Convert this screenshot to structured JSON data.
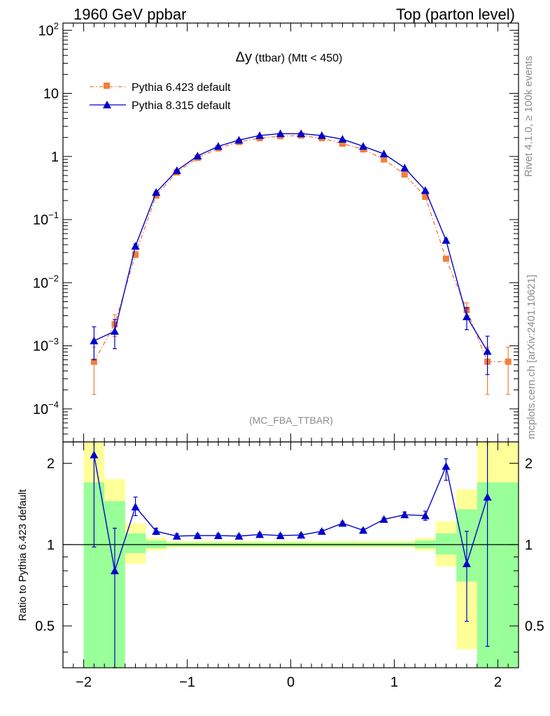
{
  "header": {
    "left": "1960 GeV ppbar",
    "right": "Top (parton level)"
  },
  "side_labels": {
    "rivet": "Rivet 4.1.0, ≥ 100k events",
    "mcplots": "mcplots.cern.ch [arXiv:2401.10621]"
  },
  "chart_data": [
    {
      "type": "line",
      "title_symbol": "Δy",
      "title_rest": " (ttbar) (Mtt < 450)",
      "analysis_tag": "(MC_FBA_TTBAR)",
      "yscale": "log",
      "xlim": [
        -2.2,
        2.2
      ],
      "ylim": [
        3e-05,
        130
      ],
      "y_ticks": [
        {
          "value": 0.0001,
          "base": "10",
          "exp": "−4"
        },
        {
          "value": 0.001,
          "base": "10",
          "exp": "−3"
        },
        {
          "value": 0.01,
          "base": "10",
          "exp": "−2"
        },
        {
          "value": 0.1,
          "base": "10",
          "exp": "−1"
        },
        {
          "value": 1,
          "base": "1",
          "exp": ""
        },
        {
          "value": 10,
          "base": "10",
          "exp": ""
        },
        {
          "value": 100,
          "base": "10",
          "exp": "2"
        }
      ],
      "legend_position": "top-left",
      "series": [
        {
          "name": "Pythia 6.423 default",
          "color": "#f0803c",
          "marker": "square",
          "linestyle": "dash-dot",
          "x": [
            -1.9,
            -1.7,
            -1.5,
            -1.3,
            -1.1,
            -0.9,
            -0.7,
            -0.5,
            -0.3,
            -0.1,
            0.1,
            0.3,
            0.5,
            0.7,
            0.9,
            1.1,
            1.3,
            1.5,
            1.7,
            1.9,
            2.1
          ],
          "y": [
            0.00056,
            0.0022,
            0.028,
            0.24,
            0.56,
            0.95,
            1.35,
            1.7,
            1.95,
            2.1,
            2.15,
            1.95,
            1.6,
            1.3,
            0.9,
            0.52,
            0.23,
            0.024,
            0.0037,
            0.00056,
            0.00056
          ],
          "yerr_low": [
            0.00039,
            0.0008,
            0.003,
            0.01,
            0.01,
            0.01,
            0.01,
            0.01,
            0.01,
            0.01,
            0.01,
            0.01,
            0.01,
            0.01,
            0.01,
            0.01,
            0.01,
            0.002,
            0.0011,
            0.00039,
            0.00039
          ],
          "yerr_high": [
            0.00039,
            0.0009,
            0.003,
            0.01,
            0.01,
            0.01,
            0.01,
            0.01,
            0.01,
            0.01,
            0.01,
            0.01,
            0.01,
            0.01,
            0.01,
            0.01,
            0.01,
            0.002,
            0.0011,
            0.00039,
            0.00039
          ]
        },
        {
          "name": "Pythia 8.315 default",
          "color": "#0000cc",
          "marker": "triangle",
          "linestyle": "solid",
          "x": [
            -1.9,
            -1.7,
            -1.5,
            -1.3,
            -1.1,
            -0.9,
            -0.7,
            -0.5,
            -0.3,
            -0.1,
            0.1,
            0.3,
            0.5,
            0.7,
            0.9,
            1.1,
            1.3,
            1.5,
            1.7,
            1.9
          ],
          "y": [
            0.0012,
            0.0017,
            0.038,
            0.27,
            0.6,
            1.02,
            1.45,
            1.82,
            2.15,
            2.3,
            2.3,
            2.15,
            1.88,
            1.45,
            1.1,
            0.66,
            0.29,
            0.047,
            0.0029,
            0.00082
          ],
          "yerr_low": [
            0.0006,
            0.0008,
            0.003,
            0.01,
            0.01,
            0.01,
            0.01,
            0.01,
            0.01,
            0.01,
            0.01,
            0.01,
            0.01,
            0.01,
            0.01,
            0.01,
            0.01,
            0.003,
            0.0011,
            0.00047
          ],
          "yerr_high": [
            0.0008,
            0.0009,
            0.003,
            0.01,
            0.01,
            0.01,
            0.01,
            0.01,
            0.01,
            0.01,
            0.01,
            0.01,
            0.01,
            0.01,
            0.01,
            0.01,
            0.01,
            0.003,
            0.0011,
            0.0006
          ]
        }
      ]
    },
    {
      "type": "line",
      "ylabel": "Ratio to Pythia 6.423 default",
      "yscale": "log",
      "xlim": [
        -2.2,
        2.2
      ],
      "ylim": [
        0.35,
        2.4
      ],
      "x_ticks": [
        {
          "value": -2,
          "label": "−2"
        },
        {
          "value": -1,
          "label": "−1"
        },
        {
          "value": 0,
          "label": "0"
        },
        {
          "value": 1,
          "label": "1"
        },
        {
          "value": 2,
          "label": "2"
        }
      ],
      "y_ticks": [
        {
          "value": 0.5,
          "label": "0.5"
        },
        {
          "value": 1,
          "label": "1"
        },
        {
          "value": 2,
          "label": "2"
        }
      ],
      "reference_line": 1,
      "bands": {
        "green_color": "#99ff99",
        "yellow_color": "#ffff99",
        "bins": [
          {
            "xlo": -2.0,
            "xhi": -1.8,
            "green": [
              0.3,
              1.7
            ],
            "yellow": [
              0.3,
              2.4
            ]
          },
          {
            "xlo": -1.8,
            "xhi": -1.6,
            "green": [
              0.3,
              1.45
            ],
            "yellow": [
              0.3,
              1.75
            ]
          },
          {
            "xlo": -1.6,
            "xhi": -1.4,
            "green": [
              0.93,
              1.1
            ],
            "yellow": [
              0.85,
              1.2
            ]
          },
          {
            "xlo": -1.4,
            "xhi": -1.2,
            "green": [
              0.97,
              1.035
            ],
            "yellow": [
              0.95,
              1.06
            ]
          },
          {
            "xlo": -1.2,
            "xhi": 1.2,
            "green": [
              0.985,
              1.015
            ],
            "yellow": [
              0.975,
              1.03
            ]
          },
          {
            "xlo": 1.2,
            "xhi": 1.4,
            "green": [
              0.97,
              1.035
            ],
            "yellow": [
              0.95,
              1.06
            ]
          },
          {
            "xlo": 1.4,
            "xhi": 1.6,
            "green": [
              0.92,
              1.1
            ],
            "yellow": [
              0.83,
              1.22
            ]
          },
          {
            "xlo": 1.6,
            "xhi": 1.8,
            "green": [
              0.73,
              1.35
            ],
            "yellow": [
              0.41,
              1.6
            ]
          },
          {
            "xlo": 1.8,
            "xhi": 2.0,
            "green": [
              0.3,
              1.7
            ],
            "yellow": [
              0.3,
              2.4
            ]
          },
          {
            "xlo": 2.0,
            "xhi": 2.2,
            "green": [
              0.3,
              1.7
            ],
            "yellow": [
              0.3,
              2.4
            ]
          }
        ]
      },
      "series": [
        {
          "name": "Pythia 8.315 default",
          "color": "#0000cc",
          "x": [
            -1.9,
            -1.7,
            -1.5,
            -1.3,
            -1.1,
            -0.9,
            -0.7,
            -0.5,
            -0.3,
            -0.1,
            0.1,
            0.3,
            0.5,
            0.7,
            0.9,
            1.1,
            1.3,
            1.5,
            1.7,
            1.9
          ],
          "y": [
            2.15,
            0.8,
            1.38,
            1.12,
            1.075,
            1.08,
            1.08,
            1.075,
            1.09,
            1.08,
            1.085,
            1.12,
            1.2,
            1.13,
            1.24,
            1.29,
            1.28,
            1.95,
            0.85,
            1.5
          ],
          "err_low": [
            1.17,
            0.48,
            0.1,
            0.03,
            0.02,
            0.015,
            0.015,
            0.015,
            0.015,
            0.015,
            0.015,
            0.015,
            0.015,
            0.015,
            0.015,
            0.03,
            0.05,
            0.22,
            0.33,
            1.08
          ],
          "err_high": [
            0.3,
            0.35,
            0.12,
            0.03,
            0.02,
            0.015,
            0.015,
            0.015,
            0.015,
            0.015,
            0.015,
            0.015,
            0.015,
            0.015,
            0.015,
            0.03,
            0.05,
            0.13,
            0.27,
            0.9
          ]
        }
      ]
    }
  ]
}
